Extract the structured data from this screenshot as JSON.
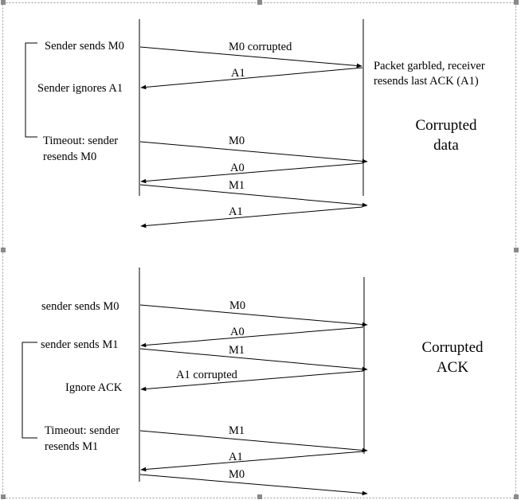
{
  "top": {
    "sender_events": {
      "sends_m0": "Sender sends M0",
      "ignores_a1": "Sender ignores A1",
      "timeout_l1": "Timeout: sender",
      "timeout_l2": "resends M0"
    },
    "receiver_note": {
      "line1": "Packet garbled, receiver",
      "line2": "resends last ACK  (A1)"
    },
    "title": {
      "line1": "Corrupted",
      "line2": "data"
    },
    "messages": [
      "M0 corrupted",
      "A1",
      "M0",
      "A0",
      "M1",
      "A1"
    ]
  },
  "bottom": {
    "sender_events": {
      "sends_m0": "sender sends M0",
      "sends_m1": "sender sends M1",
      "ignore_ack": "Ignore ACK",
      "timeout_l1": "Timeout: sender",
      "timeout_l2": "resends M1"
    },
    "title": {
      "line1": "Corrupted",
      "line2": "ACK"
    },
    "messages": [
      "M0",
      "A0",
      "M1",
      "A1 corrupted",
      "M1",
      "A1",
      "M0"
    ]
  }
}
